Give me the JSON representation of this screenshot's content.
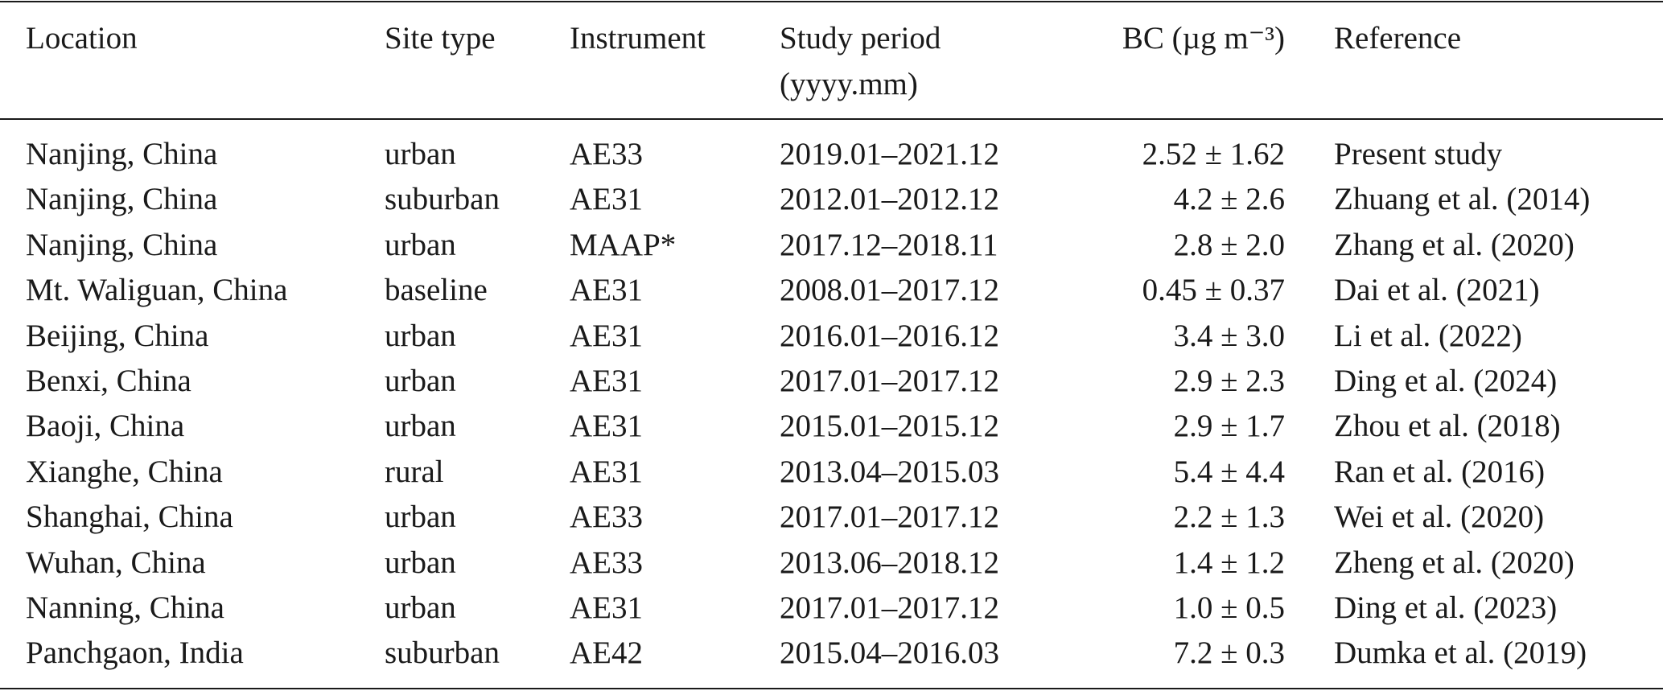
{
  "table": {
    "header": [
      "Location",
      "Site type",
      "Instrument",
      [
        "Study period",
        "(yyyy.mm)"
      ],
      "BC (µg m⁻³)",
      "Reference"
    ],
    "rows": [
      [
        "Nanjing, China",
        "urban",
        "AE33",
        "2019.01–2021.12",
        "2.52 ± 1.62",
        "Present study"
      ],
      [
        "Nanjing, China",
        "suburban",
        "AE31",
        "2012.01–2012.12",
        "4.2 ± 2.6",
        "Zhuang et al. (2014)"
      ],
      [
        "Nanjing, China",
        "urban",
        "MAAP*",
        "2017.12–2018.11",
        "2.8 ± 2.0",
        "Zhang et al. (2020)"
      ],
      [
        "Mt. Waliguan, China",
        "baseline",
        "AE31",
        "2008.01–2017.12",
        "0.45 ± 0.37",
        "Dai et al. (2021)"
      ],
      [
        "Beijing, China",
        "urban",
        "AE31",
        "2016.01–2016.12",
        "3.4 ± 3.0",
        "Li et al. (2022)"
      ],
      [
        "Benxi, China",
        "urban",
        "AE31",
        "2017.01–2017.12",
        "2.9 ± 2.3",
        "Ding et al. (2024)"
      ],
      [
        "Baoji, China",
        "urban",
        "AE31",
        "2015.01–2015.12",
        "2.9 ± 1.7",
        "Zhou et al. (2018)"
      ],
      [
        "Xianghe, China",
        "rural",
        "AE31",
        "2013.04–2015.03",
        "5.4 ± 4.4",
        "Ran et al. (2016)"
      ],
      [
        "Shanghai, China",
        "urban",
        "AE33",
        "2017.01–2017.12",
        "2.2 ± 1.3",
        "Wei et al. (2020)"
      ],
      [
        "Wuhan, China",
        "urban",
        "AE33",
        "2013.06–2018.12",
        "1.4 ± 1.2",
        "Zheng et al. (2020)"
      ],
      [
        "Nanning, China",
        "urban",
        "AE31",
        "2017.01–2017.12",
        "1.0 ± 0.5",
        "Ding et al. (2023)"
      ],
      [
        "Panchgaon, India",
        "suburban",
        "AE42",
        "2015.04–2016.03",
        "7.2 ± 0.3",
        "Dumka et al. (2019)"
      ]
    ]
  }
}
